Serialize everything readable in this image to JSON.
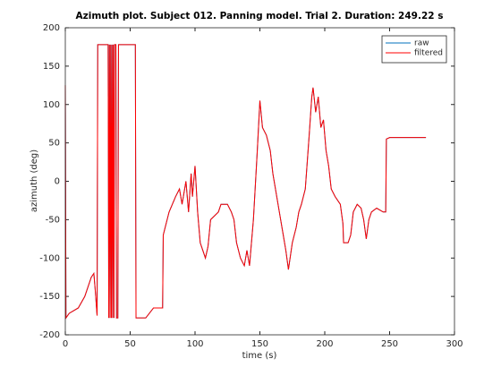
{
  "chart_data": {
    "type": "line",
    "title": "Azimuth plot. Subject 012. Panning model. Trial 2. Duration: 249.22 s",
    "xlabel": "time (s)",
    "ylabel": "azimuth (deg)",
    "xlim": [
      0,
      300
    ],
    "xticks": [
      0,
      50,
      100,
      150,
      200,
      250,
      300
    ],
    "ylim": [
      -200,
      200
    ],
    "yticks": [
      -200,
      -150,
      -100,
      -50,
      0,
      50,
      100,
      150,
      200
    ],
    "legend": "northeast",
    "x": [
      0,
      0.5,
      3,
      10,
      15,
      20,
      22,
      23,
      24.5,
      25,
      25.5,
      33,
      33.5,
      34,
      34.5,
      35,
      35.5,
      36,
      36.5,
      37,
      37.5,
      38,
      39,
      39.5,
      40.5,
      41,
      54,
      54.5,
      62,
      68,
      75,
      75.5,
      80,
      85,
      88,
      90,
      93,
      95,
      97,
      98,
      100,
      102,
      104,
      106,
      108,
      110,
      112,
      115,
      118,
      120,
      125,
      128,
      130,
      132,
      135,
      138,
      140,
      142,
      145,
      148,
      150,
      152,
      155,
      158,
      160,
      162,
      165,
      168,
      170,
      172,
      175,
      178,
      180,
      182,
      185,
      188,
      190,
      191,
      193,
      195,
      197,
      199,
      201,
      203,
      205,
      208,
      212,
      214,
      214.5,
      218,
      220,
      222,
      225,
      228,
      230,
      232,
      234,
      236,
      240,
      245,
      247,
      247.5,
      250,
      278
    ],
    "series": [
      {
        "name": "raw",
        "color": "#0072bd",
        "values": [
          125,
          -178,
          -172,
          -165,
          -150,
          -125,
          -120,
          -140,
          -175,
          178,
          178,
          178,
          -178,
          178,
          -178,
          178,
          -178,
          178,
          -178,
          178,
          -178,
          178,
          178,
          -178,
          -178,
          178,
          178,
          -178,
          -178,
          -165,
          -165,
          -70,
          -40,
          -20,
          -10,
          -30,
          0,
          -40,
          10,
          -20,
          20,
          -40,
          -80,
          -90,
          -100,
          -85,
          -50,
          -45,
          -40,
          -30,
          -30,
          -40,
          -50,
          -80,
          -100,
          -110,
          -90,
          -110,
          -50,
          40,
          105,
          70,
          60,
          40,
          10,
          -10,
          -40,
          -70,
          -90,
          -115,
          -80,
          -60,
          -40,
          -30,
          -10,
          60,
          110,
          122,
          90,
          110,
          70,
          80,
          40,
          20,
          -10,
          -20,
          -30,
          -55,
          -80,
          -80,
          -70,
          -40,
          -30,
          -35,
          -50,
          -75,
          -50,
          -40,
          -35,
          -40,
          -40,
          55,
          57,
          57
        ]
      },
      {
        "name": "filtered",
        "color": "#ff0000",
        "values": [
          125,
          -178,
          -172,
          -165,
          -150,
          -125,
          -120,
          -140,
          -175,
          178,
          178,
          178,
          -178,
          178,
          -178,
          178,
          -178,
          178,
          -178,
          178,
          -178,
          178,
          178,
          -178,
          -178,
          178,
          178,
          -178,
          -178,
          -165,
          -165,
          -70,
          -40,
          -20,
          -10,
          -30,
          0,
          -40,
          10,
          -20,
          20,
          -40,
          -80,
          -90,
          -100,
          -85,
          -50,
          -45,
          -40,
          -30,
          -30,
          -40,
          -50,
          -80,
          -100,
          -110,
          -90,
          -110,
          -50,
          40,
          105,
          70,
          60,
          40,
          10,
          -10,
          -40,
          -70,
          -90,
          -115,
          -80,
          -60,
          -40,
          -30,
          -10,
          60,
          110,
          122,
          90,
          110,
          70,
          80,
          40,
          20,
          -10,
          -20,
          -30,
          -55,
          -80,
          -80,
          -70,
          -40,
          -30,
          -35,
          -50,
          -75,
          -50,
          -40,
          -35,
          -40,
          -40,
          55,
          57,
          57
        ]
      }
    ]
  }
}
